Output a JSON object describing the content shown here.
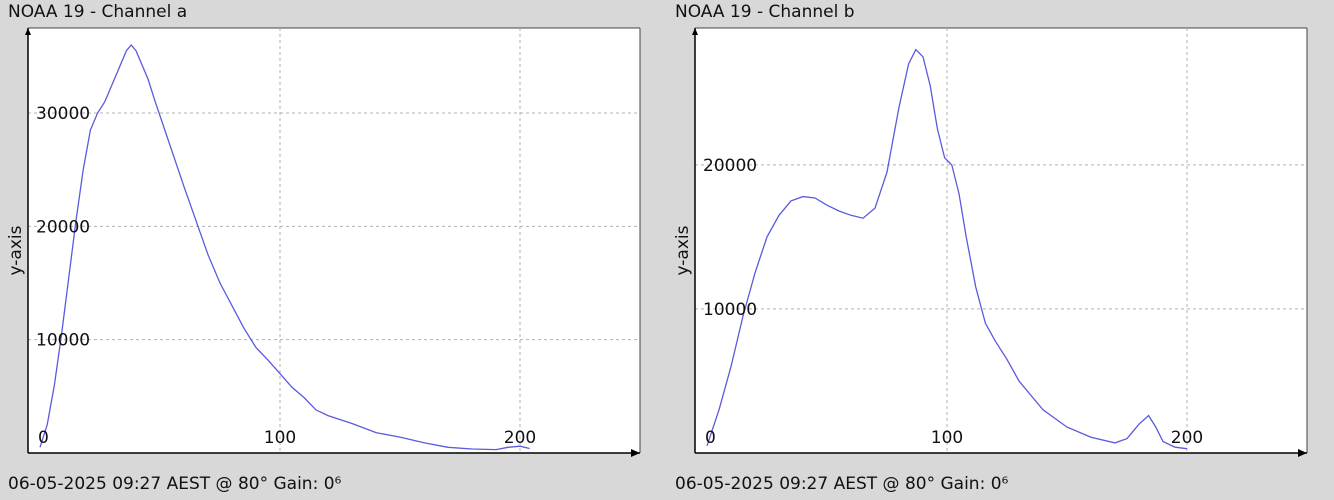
{
  "chart_data": [
    {
      "type": "line",
      "title": "NOAA 19 - Channel a",
      "footer": "06-05-2025 09:27 AEST @ 80° Gain: 0⁶",
      "xlabel": "",
      "ylabel": "y-axis",
      "xlim": [
        -5,
        250
      ],
      "ylim": [
        0,
        37500
      ],
      "grid": true,
      "x_ticks": [
        0,
        100,
        200
      ],
      "y_ticks": [
        10000,
        20000,
        30000
      ],
      "colors": {
        "line": "#5a5adf",
        "grid": "#b0b0b0",
        "axis": "#000000",
        "background": "#ffffff"
      },
      "series": [
        {
          "x": [
            0,
            3,
            6,
            9,
            12,
            15,
            18,
            21,
            24,
            27,
            30,
            33,
            36,
            38,
            40,
            42,
            45,
            48,
            52,
            56,
            60,
            65,
            70,
            75,
            80,
            85,
            90,
            95,
            100,
            105,
            110,
            115,
            120,
            130,
            140,
            150,
            160,
            170,
            180,
            190,
            195,
            200,
            204
          ],
          "y": [
            500,
            2500,
            6000,
            10500,
            15500,
            20500,
            25000,
            28500,
            30000,
            31000,
            32500,
            34000,
            35500,
            36000,
            35500,
            34500,
            33000,
            31000,
            28500,
            26000,
            23500,
            20500,
            17500,
            15000,
            13000,
            11000,
            9300,
            8200,
            7000,
            5800,
            4900,
            3800,
            3300,
            2600,
            1800,
            1400,
            900,
            500,
            350,
            300,
            500,
            600,
            400
          ]
        }
      ]
    },
    {
      "type": "line",
      "title": "NOAA 19 - Channel b",
      "footer": "06-05-2025 09:27 AEST @ 80° Gain: 0⁶",
      "xlabel": "",
      "ylabel": "y-axis",
      "xlim": [
        -5,
        250
      ],
      "ylim": [
        0,
        29500
      ],
      "grid": true,
      "x_ticks": [
        0,
        100,
        200
      ],
      "y_ticks": [
        10000,
        20000
      ],
      "colors": {
        "line": "#5a5adf",
        "grid": "#b0b0b0",
        "axis": "#000000",
        "background": "#ffffff"
      },
      "series": [
        {
          "x": [
            0,
            5,
            10,
            15,
            20,
            25,
            30,
            35,
            40,
            45,
            50,
            55,
            60,
            65,
            70,
            75,
            80,
            84,
            87,
            90,
            93,
            96,
            99,
            102,
            105,
            108,
            112,
            116,
            120,
            125,
            130,
            140,
            150,
            160,
            170,
            175,
            180,
            184,
            187,
            190,
            195,
            200
          ],
          "y": [
            500,
            3000,
            6000,
            9500,
            12500,
            15000,
            16500,
            17500,
            17800,
            17700,
            17200,
            16800,
            16500,
            16300,
            17000,
            19500,
            24000,
            27000,
            28000,
            27500,
            25500,
            22500,
            20500,
            20000,
            18000,
            15000,
            11500,
            9000,
            7800,
            6500,
            5000,
            3000,
            1800,
            1100,
            700,
            1000,
            2000,
            2600,
            1800,
            800,
            400,
            300
          ]
        }
      ]
    }
  ]
}
